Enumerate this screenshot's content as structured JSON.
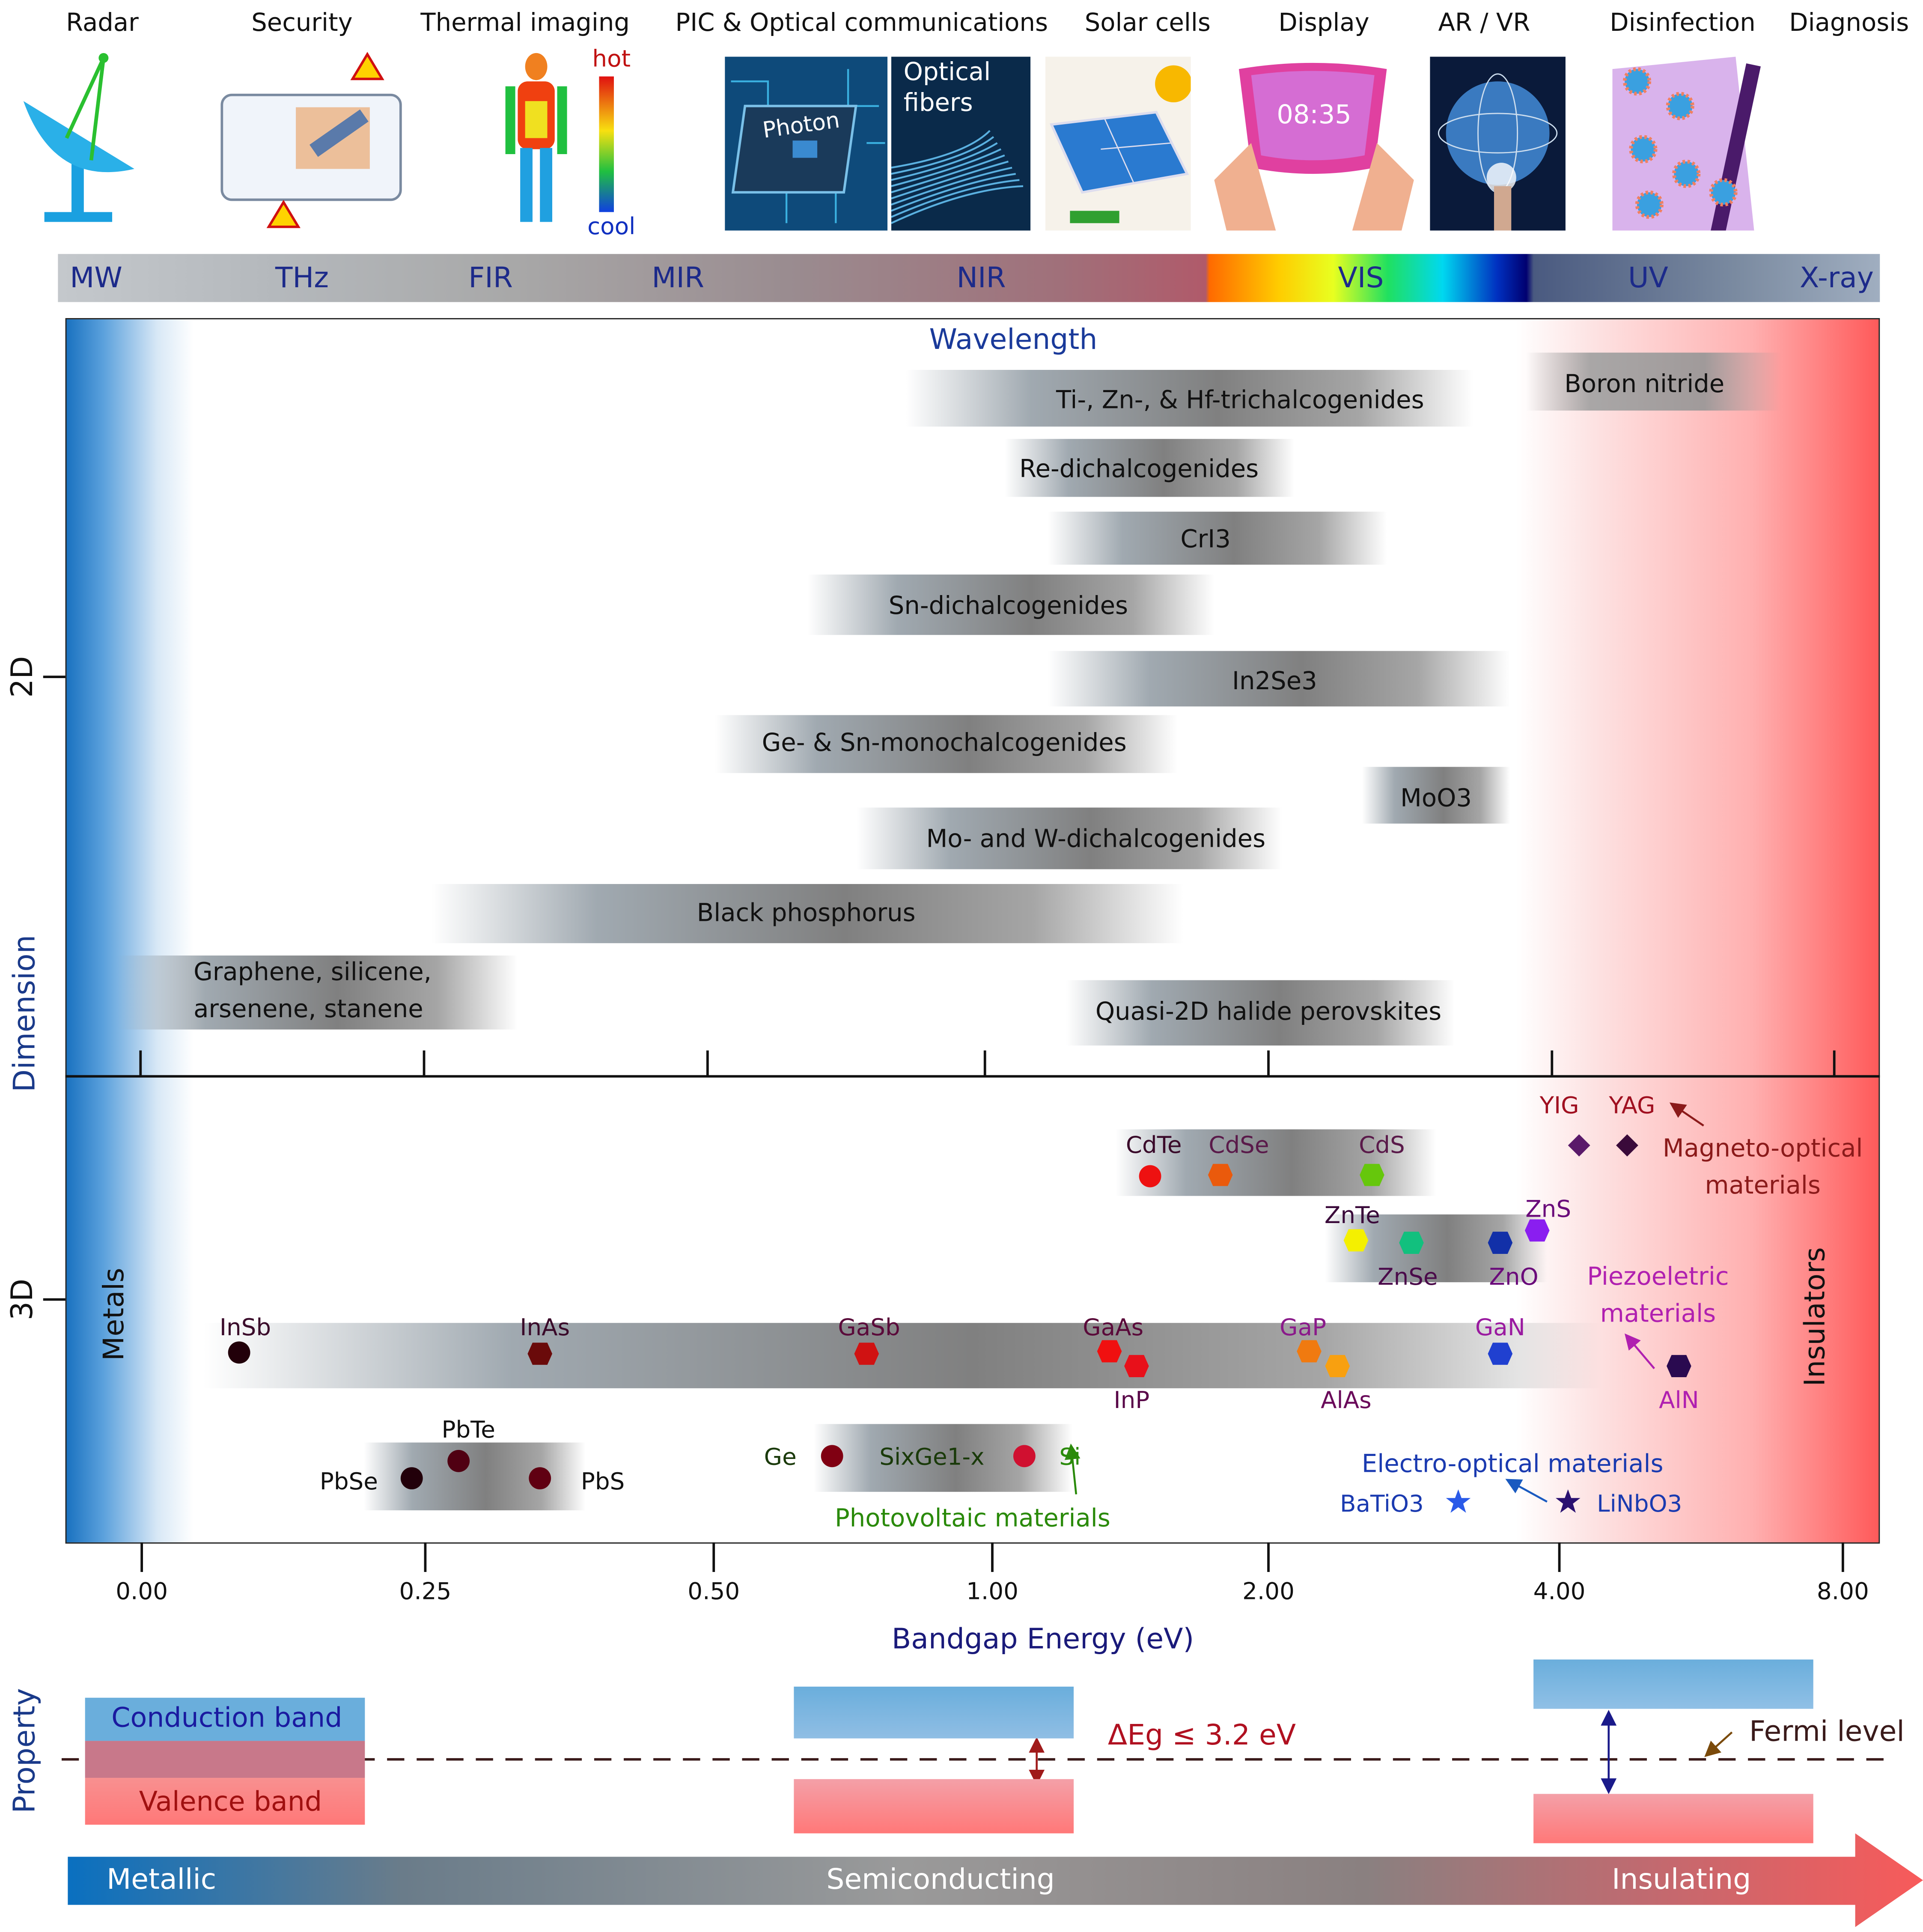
{
  "applications": [
    {
      "label": "Radar",
      "icon": "radar-dish-icon"
    },
    {
      "label": "Security",
      "icon": "suitcase-scan-icon"
    },
    {
      "label": "Thermal imaging",
      "icon": "thermal-body-icon"
    },
    {
      "label": "PIC & Optical communications",
      "icon": "photonic-chip-icon"
    },
    {
      "label": "Solar cells",
      "icon": "solar-panel-icon"
    },
    {
      "label": "Display",
      "icon": "foldable-display-icon"
    },
    {
      "label": "AR / VR",
      "icon": "globe-touch-icon"
    },
    {
      "label": "Disinfection",
      "icon": "uv-virus-icon"
    },
    {
      "label": "Diagnosis",
      "icon": "xray-chest-icon"
    }
  ],
  "image_text": {
    "hot": "hot",
    "cool": "cool",
    "photon": "Photon",
    "optical_fibers_1": "Optical",
    "optical_fibers_2": "fibers",
    "clock": "08:35"
  },
  "spectrum": [
    "MW",
    "THz",
    "FIR",
    "MIR",
    "NIR",
    "VIS",
    "UV",
    "X-ray"
  ],
  "wavelength_label": "Wavelength",
  "axis": {
    "y_title": "Dimension",
    "y_ticks": [
      "2D",
      "3D"
    ],
    "x_title": "Bandgap Energy (eV)",
    "x_ticks": [
      "0.00",
      "0.25",
      "0.50",
      "1.00",
      "2.00",
      "4.00",
      "8.00"
    ],
    "left_region": "Metals",
    "right_region": "Insulators"
  },
  "materials_2d": [
    "Ti-, Zn-, & Hf-trichalcogenides",
    "Boron nitride",
    "Re-dichalcogenides",
    "CrI3",
    "Sn-dichalcogenides",
    "In2Se3",
    "Ge- & Sn-monochalcogenides",
    "MoO3",
    "Mo- and W-dichalcogenides",
    "Black phosphorus",
    "Graphene, silicene,",
    "arsenene, stanene",
    "Quasi-2D halide perovskites"
  ],
  "materials_3d": [
    {
      "label": "CdTe",
      "color": "#ee1111",
      "shape": "circle",
      "label_color": "#3a0a2a"
    },
    {
      "label": "CdSe",
      "color": "#ea5a0c",
      "shape": "hex",
      "label_color": "#5a1a4a"
    },
    {
      "label": "CdS",
      "color": "#66c70c",
      "shape": "hex",
      "label_color": "#5a1a4a"
    },
    {
      "label": "ZnTe",
      "color": "#f4f000",
      "shape": "hex",
      "label_color": "#3a0a3a"
    },
    {
      "label": "ZnSe",
      "color": "#12c07e",
      "shape": "hex",
      "label_color": "#4a0a4a"
    },
    {
      "label": "ZnO",
      "color": "#1230a8",
      "shape": "hex",
      "label_color": "#6a0a7a"
    },
    {
      "label": "ZnS",
      "color": "#8a1ef0",
      "shape": "hex",
      "label_color": "#6a0a7a"
    },
    {
      "label": "InSb",
      "color": "#22000a",
      "shape": "circle",
      "label_color": "#3a0a2a"
    },
    {
      "label": "InAs",
      "color": "#6a0a0a",
      "shape": "hex",
      "label_color": "#3a0a2a"
    },
    {
      "label": "GaSb",
      "color": "#d01212",
      "shape": "hex",
      "label_color": "#5a0a3a"
    },
    {
      "label": "GaAs",
      "color": "#f01010",
      "shape": "hex",
      "label_color": "#5a0a3a"
    },
    {
      "label": "InP",
      "color": "#e8101a",
      "shape": "hex",
      "label_color": "#5a0a4a"
    },
    {
      "label": "GaP",
      "color": "#f07a10",
      "shape": "hex",
      "label_color": "#8a1a8a"
    },
    {
      "label": "AlAs",
      "color": "#f8a010",
      "shape": "hex",
      "label_color": "#6a0a5a"
    },
    {
      "label": "GaN",
      "color": "#2040d0",
      "shape": "hex",
      "label_color": "#9a1aa0"
    },
    {
      "label": "AlN",
      "color": "#2a0a50",
      "shape": "hex",
      "label_color": "#b020b0"
    },
    {
      "label": "PbSe",
      "color": "#22000a",
      "shape": "circle",
      "label_color": "#111"
    },
    {
      "label": "PbTe",
      "color": "#500012",
      "shape": "circle",
      "label_color": "#111"
    },
    {
      "label": "PbS",
      "color": "#600012",
      "shape": "circle",
      "label_color": "#111"
    },
    {
      "label": "Ge",
      "color": "#800012",
      "shape": "circle",
      "label_color": "#1a3a0a"
    },
    {
      "label": "Si",
      "color": "#d01030",
      "shape": "circle",
      "label_color": "#2a8a0a"
    },
    {
      "label": "YIG",
      "color": "#5a1a6a",
      "shape": "diamond",
      "label_color": "#a01020"
    },
    {
      "label": "YAG",
      "color": "#3a0a3a",
      "shape": "diamond",
      "label_color": "#a01020"
    },
    {
      "label": "BaTiO3",
      "color": "#2a5ae8",
      "shape": "star",
      "label_color": "#1a3ab0"
    },
    {
      "label": "LiNbO3",
      "color": "#2a1070",
      "shape": "star",
      "label_color": "#1a3ab0"
    }
  ],
  "alloy_label": "SixGe1-x",
  "annotations": {
    "magneto_1": "Magneto-optical",
    "magneto_2": "materials",
    "piezo_1": "Piezoeletric",
    "piezo_2": "materials",
    "electro": "Electro-optical materials",
    "photovoltaic": "Photovoltaic materials"
  },
  "property": {
    "title": "Property",
    "conduction_band": "Conduction band",
    "valence_band": "Valence band",
    "gap_label": "ΔEg ≤ 3.2 eV",
    "fermi_level": "Fermi level",
    "arrow_labels": [
      "Metallic",
      "Semiconducting",
      "Insulating"
    ]
  },
  "colors": {
    "metal_blue": "#1a72c0",
    "insulator_red": "#ff5a5a",
    "axis_blue": "#1a3a8a",
    "conduction": "#6aaedc",
    "valence": "#ff7a7a"
  }
}
